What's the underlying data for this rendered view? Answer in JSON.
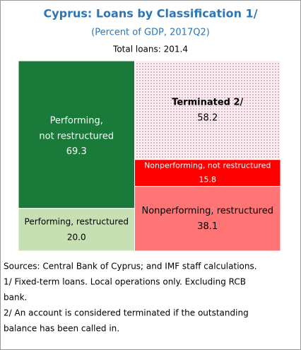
{
  "chart_data": {
    "type": "treemap",
    "title": "Cyprus: Loans by Classification 1/",
    "subtitle": "(Percent of GDP, 2017Q2)",
    "total_label": "Total loans: 201.4",
    "categories": [
      "Performing, not restructured",
      "Performing, restructured",
      "Terminated 2/",
      "Nonperforming, not restructured",
      "Nonperforming, restructured"
    ],
    "values": [
      69.3,
      20,
      58.2,
      15.8,
      38.1
    ],
    "value_labels": [
      "69.3",
      "20.0",
      "58.2",
      "15.8",
      "38.1"
    ],
    "colors": [
      "#197a3a",
      "#c6e0b4",
      "#f4c7d2",
      "#ff0000",
      "#ff7474"
    ],
    "notes": [
      "Sources: Central Bank of Cyprus; and IMF staff calculations.",
      "1/ Fixed-term loans. Local operations only. Excluding RCB",
      "bank.",
      "2/ An account is considered terminated if the outstanding",
      "balance has been called in."
    ]
  }
}
